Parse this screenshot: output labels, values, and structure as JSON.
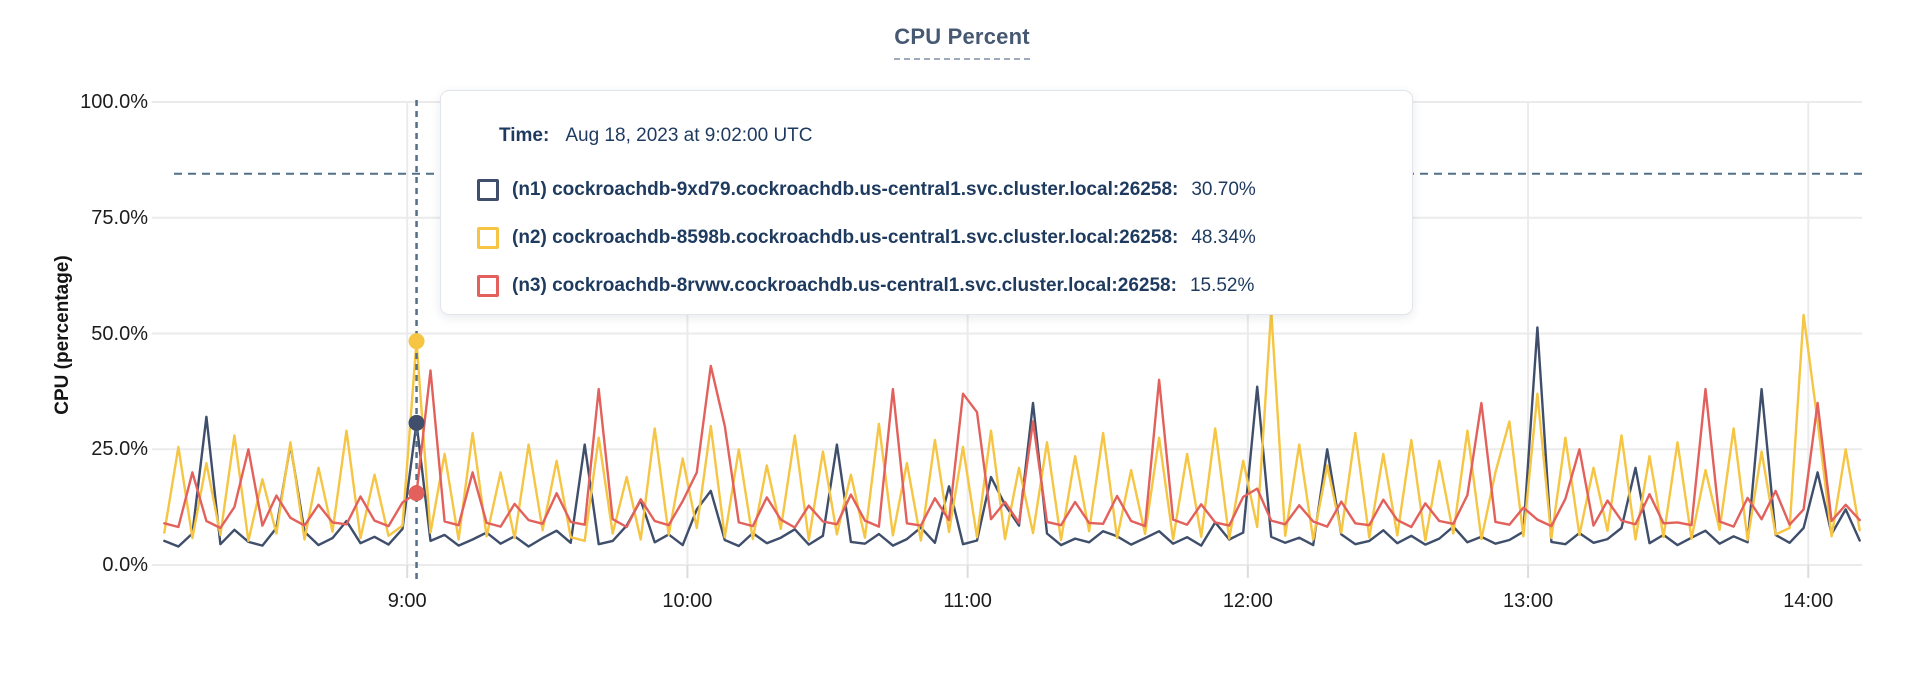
{
  "title": "CPU Percent",
  "y_axis": {
    "label": "CPU (percentage)"
  },
  "tooltip": {
    "time_label": "Time:",
    "time_value": "Aug 18, 2023 at 9:02:00 UTC",
    "rows": [
      {
        "label": "(n1) cockroachdb-9xd79.cockroachdb.us-central1.svc.cluster.local:26258:",
        "value": "30.70%",
        "color": "#3e4e6b"
      },
      {
        "label": "(n2) cockroachdb-8598b.cockroachdb.us-central1.svc.cluster.local:26258:",
        "value": "48.34%",
        "color": "#f5c543"
      },
      {
        "label": "(n3) cockroachdb-8rvwv.cockroachdb.us-central1.svc.cluster.local:26258:",
        "value": "15.52%",
        "color": "#e2615c"
      }
    ]
  },
  "colors": {
    "background": "#ffffff",
    "grid": "#ebebeb",
    "dashed": "#527089",
    "title": "#475872",
    "title_underline": "#9fabbd",
    "tick_text": "#1c1c1c",
    "tooltip_text": "#1e3a5f",
    "tooltip_border": "#e2e6ec",
    "series_n1": "#3e4e6b",
    "series_n2": "#f5c543",
    "series_n3": "#e2615c"
  },
  "chart_data": {
    "type": "line",
    "title": "CPU Percent",
    "xlabel": "",
    "ylabel": "CPU (percentage)",
    "ylim": [
      0,
      100
    ],
    "grid": true,
    "y_grid_percents": [
      0,
      25,
      50,
      75,
      100
    ],
    "y_tick_labels": [
      "0.0%",
      "25.0%",
      "50.0%",
      "75.0%",
      "100.0%"
    ],
    "x_start_min": 488,
    "x_step_min": 3,
    "x_tick_minutes": [
      540,
      600,
      660,
      720,
      780,
      840
    ],
    "x_tick_labels": [
      "9:00",
      "10:00",
      "11:00",
      "12:00",
      "13:00",
      "14:00"
    ],
    "threshold_percent": 84.5,
    "hover": {
      "time_min": 542,
      "time_text": "Aug 18, 2023 at 9:02:00 UTC",
      "points": [
        {
          "series": "n2",
          "color": "#f5c543",
          "value": 48.34
        },
        {
          "series": "n1",
          "color": "#3e4e6b",
          "value": 30.7
        },
        {
          "series": "n3",
          "color": "#e2615c",
          "value": 15.52
        }
      ]
    },
    "series": [
      {
        "id": "n1",
        "name": "(n1) cockroachdb-9xd79.cockroachdb.us-central1.svc.cluster.local:26258",
        "color": "#3e4e6b",
        "values": [
          5.2,
          4.0,
          6.8,
          32.0,
          4.5,
          7.6,
          5.0,
          4.2,
          8.0,
          26.0,
          7.2,
          4.3,
          5.8,
          9.5,
          4.7,
          6.1,
          4.4,
          7.8,
          30.7,
          5.2,
          6.5,
          4.2,
          5.5,
          7.0,
          4.6,
          6.2,
          4.0,
          5.8,
          7.4,
          4.8,
          26.0,
          4.5,
          5.2,
          8.5,
          14.0,
          4.9,
          6.6,
          4.3,
          12.0,
          16.0,
          5.4,
          4.1,
          6.9,
          4.7,
          5.9,
          7.7,
          4.4,
          6.3,
          26.0,
          5.0,
          4.6,
          6.7,
          4.2,
          5.6,
          8.1,
          4.8,
          17.0,
          4.5,
          5.3,
          19.0,
          13.0,
          8.5,
          35.0,
          6.8,
          4.3,
          5.7,
          4.9,
          7.3,
          6.2,
          4.4,
          5.8,
          7.3,
          4.6,
          6.0,
          4.2,
          9.2,
          5.5,
          7.0,
          38.5,
          6.1,
          4.8,
          5.9,
          4.3,
          25.0,
          6.6,
          4.5,
          5.2,
          7.5,
          4.7,
          6.3,
          4.4,
          5.7,
          8.3,
          4.9,
          6.1,
          4.6,
          5.4,
          7.2,
          51.3,
          5.0,
          4.5,
          6.9,
          4.8,
          5.6,
          8.0,
          21.0,
          4.7,
          6.5,
          4.3,
          5.9,
          7.4,
          4.6,
          6.2,
          4.9,
          38.0,
          6.5,
          4.8,
          8.0,
          20.0,
          6.7,
          12.0,
          5.3
        ]
      },
      {
        "id": "n2",
        "name": "(n2) cockroachdb-8598b.cockroachdb.us-central1.svc.cluster.local:26258",
        "color": "#f5c543",
        "values": [
          7.0,
          25.5,
          5.8,
          22.0,
          6.5,
          28.0,
          5.2,
          18.5,
          6.8,
          26.5,
          5.5,
          21.0,
          7.2,
          29.0,
          5.8,
          19.5,
          6.3,
          8.5,
          48.34,
          7.0,
          24.0,
          5.5,
          28.5,
          6.2,
          20.0,
          5.8,
          26.0,
          7.5,
          22.5,
          6.0,
          5.2,
          27.5,
          6.8,
          19.0,
          5.5,
          29.5,
          6.5,
          23.0,
          8.0,
          30.0,
          6.0,
          25.0,
          5.6,
          21.5,
          7.8,
          28.0,
          5.4,
          24.5,
          6.6,
          19.5,
          5.9,
          30.5,
          6.4,
          22.0,
          5.3,
          27.0,
          7.1,
          25.5,
          6.0,
          29.0,
          5.6,
          21.0,
          6.9,
          26.5,
          5.4,
          23.5,
          7.3,
          28.5,
          5.8,
          20.5,
          6.7,
          27.5,
          5.5,
          24.0,
          6.1,
          29.5,
          5.7,
          22.5,
          8.2,
          55.0,
          6.3,
          26.0,
          5.5,
          21.5,
          7.0,
          28.5,
          5.9,
          24.0,
          6.4,
          27.0,
          5.3,
          22.5,
          6.8,
          29.0,
          5.6,
          20.0,
          31.0,
          6.2,
          37.0,
          5.8,
          27.5,
          6.5,
          21.0,
          7.4,
          28.0,
          5.5,
          23.5,
          6.0,
          26.5,
          5.7,
          20.5,
          7.6,
          29.5,
          5.4,
          24.5,
          6.6,
          8.0,
          54.0,
          31.0,
          6.2,
          25.0,
          7.5
        ]
      },
      {
        "id": "n3",
        "name": "(n3) cockroachdb-8rvwv.cockroachdb.us-central1.svc.cluster.local:26258",
        "color": "#e2615c",
        "values": [
          9.0,
          8.2,
          20.0,
          9.5,
          8.0,
          12.5,
          25.0,
          8.5,
          15.0,
          10.2,
          8.5,
          13.0,
          9.2,
          8.8,
          14.8,
          9.6,
          8.4,
          13.5,
          15.52,
          42.0,
          9.4,
          8.6,
          20.0,
          9.1,
          8.3,
          13.2,
          9.7,
          8.9,
          15.5,
          9.3,
          8.7,
          38.0,
          9.9,
          8.2,
          14.2,
          9.5,
          8.6,
          13.8,
          20.0,
          43.0,
          30.0,
          9.2,
          8.4,
          14.6,
          9.8,
          8.1,
          12.8,
          9.4,
          8.8,
          15.2,
          9.6,
          8.3,
          38.0,
          9.0,
          8.5,
          14.4,
          9.7,
          37.0,
          33.0,
          9.9,
          13.6,
          9.1,
          31.0,
          9.3,
          8.6,
          13.6,
          9.1,
          8.9,
          14.9,
          9.5,
          8.4,
          40.0,
          9.8,
          8.7,
          13.1,
          9.2,
          8.5,
          14.7,
          16.5,
          9.6,
          8.8,
          12.9,
          9.4,
          8.3,
          13.7,
          9.0,
          8.6,
          14.1,
          9.7,
          8.2,
          13.3,
          9.5,
          8.9,
          15.1,
          35.0,
          9.3,
          8.7,
          12.4,
          9.8,
          8.4,
          14.3,
          25.0,
          8.5,
          13.9,
          9.6,
          8.8,
          15.3,
          9.0,
          9.2,
          8.6,
          38.0,
          9.4,
          8.3,
          14.5,
          9.9,
          16.0,
          8.7,
          12.0,
          35.0,
          9.5,
          13.0,
          9.7
        ]
      }
    ]
  }
}
